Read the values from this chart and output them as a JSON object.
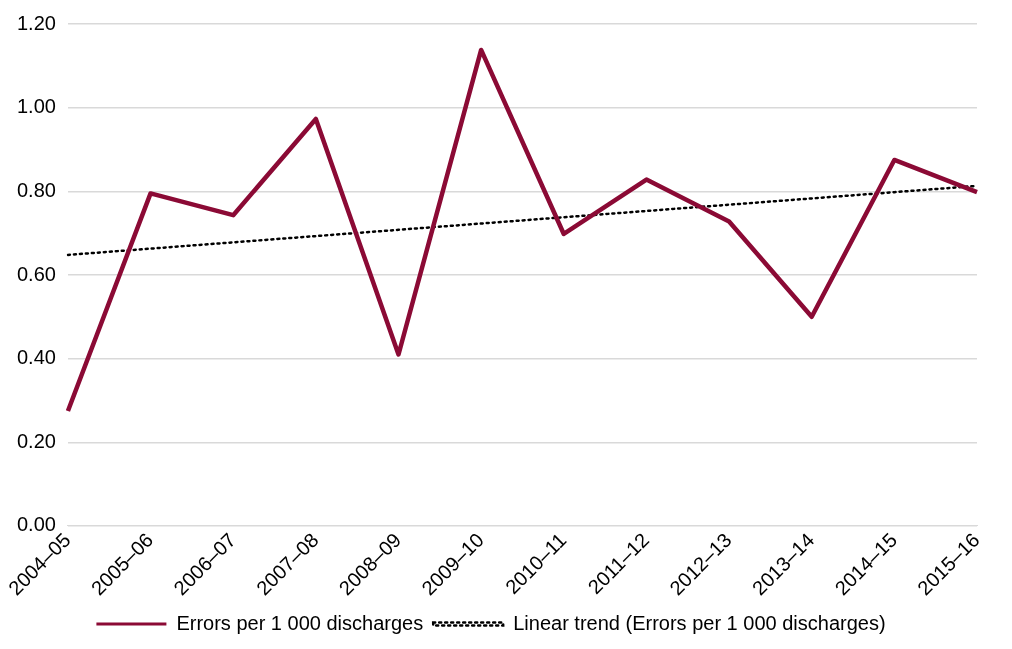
{
  "chart_data": {
    "type": "line",
    "categories": [
      "2004–05",
      "2005–06",
      "2006–07",
      "2007–08",
      "2008–09",
      "2009–10",
      "2010–11",
      "2011–12",
      "2012–13",
      "2013–14",
      "2014–15",
      "2015–16"
    ],
    "series": [
      {
        "name": "Errors per 1 000 discharges",
        "color": "#8b0a35",
        "line_style": "solid",
        "values": [
          0.275,
          0.795,
          0.743,
          0.973,
          0.41,
          1.138,
          0.698,
          0.828,
          0.728,
          0.5,
          0.875,
          0.798
        ]
      },
      {
        "name": "Linear trend (Errors per 1 000 discharges)",
        "color": "#000000",
        "line_style": "dotted",
        "values": [
          0.648,
          0.663,
          0.678,
          0.693,
          0.708,
          0.723,
          0.738,
          0.753,
          0.768,
          0.783,
          0.798,
          0.813
        ]
      }
    ],
    "ylim": [
      0,
      1.2
    ],
    "yticks": [
      {
        "value": 0,
        "label": "0.00"
      },
      {
        "value": 0.2,
        "label": "0.20"
      },
      {
        "value": 0.4,
        "label": "0.40"
      },
      {
        "value": 0.6,
        "label": "0.60"
      },
      {
        "value": 0.8,
        "label": "0.80"
      },
      {
        "value": 1,
        "label": "1.00"
      },
      {
        "value": 1.2,
        "label": "1.20"
      }
    ],
    "grid": "y",
    "legend": "bottom",
    "marker": "none"
  }
}
